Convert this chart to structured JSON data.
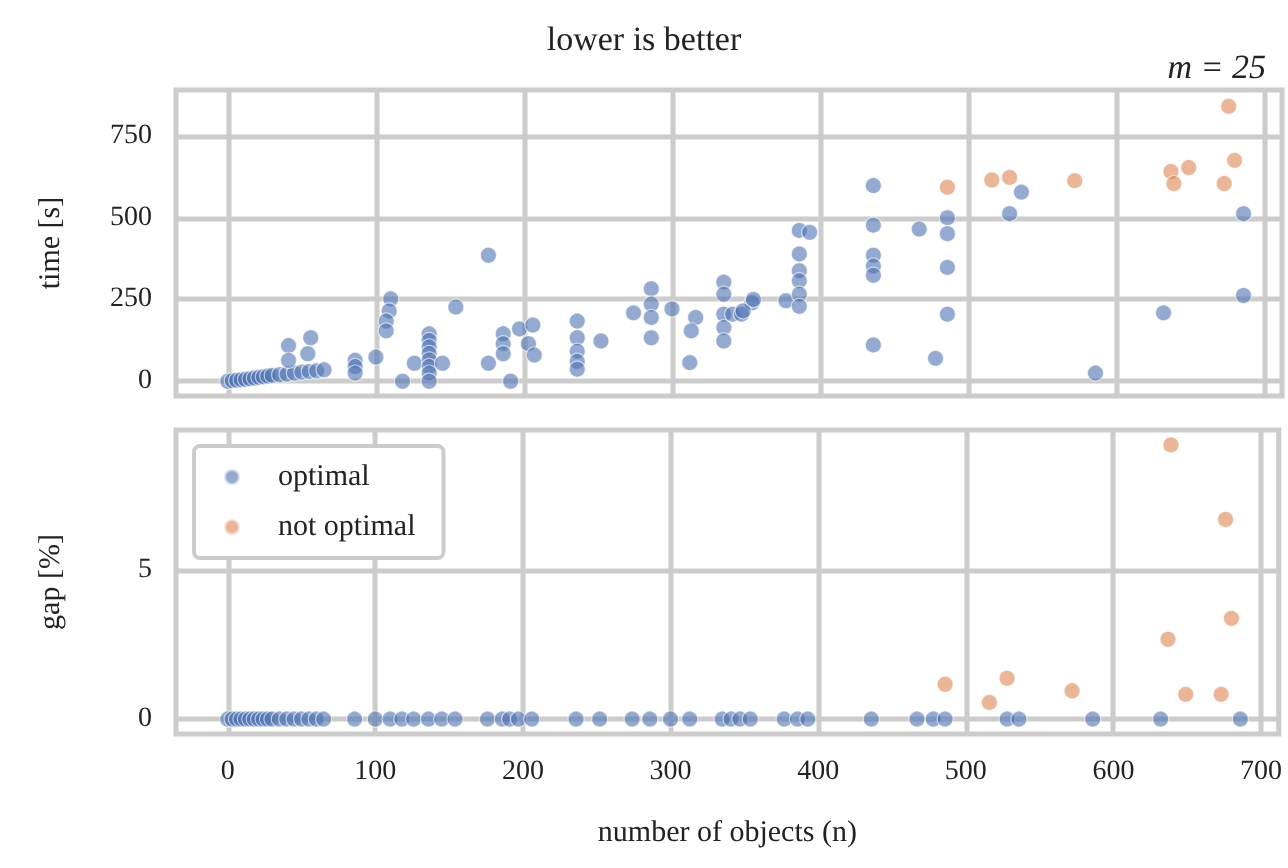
{
  "chart_data": [
    {
      "type": "scatter",
      "title": "lower is better",
      "annotations": [
        "m = 25"
      ],
      "ylabel": "time [s]",
      "xlim": [
        -35,
        712
      ],
      "xticks": [
        0,
        100,
        200,
        300,
        400,
        500,
        600,
        700
      ],
      "ylim": [
        -45,
        890
      ],
      "yticks": [
        0,
        250,
        500,
        750
      ],
      "tick_labels": "y",
      "grid": true,
      "marker": "circle",
      "legend": false,
      "series": [
        {
          "color": "#4c72b0",
          "x": [
            0,
            3,
            6,
            9,
            12,
            15,
            18,
            21,
            24,
            27,
            30,
            35,
            40,
            45,
            50,
            55,
            60,
            65,
            41,
            56,
            54,
            41,
            86,
            86,
            86,
            100,
            110,
            109,
            107,
            107,
            118,
            126,
            136,
            136,
            136,
            136,
            136,
            136,
            136,
            136,
            145,
            154,
            176,
            176,
            186,
            186,
            186,
            191,
            197,
            206,
            203,
            207,
            236,
            236,
            236,
            236,
            236,
            252,
            274,
            286,
            286,
            286,
            286,
            300,
            316,
            313,
            312,
            335,
            335,
            335,
            335,
            335,
            341,
            347,
            354,
            348,
            355,
            377,
            386,
            386,
            386,
            386,
            386,
            386,
            393,
            436,
            436,
            436,
            436,
            436,
            436,
            467,
            478,
            486,
            486,
            486,
            486,
            536,
            528,
            586,
            632,
            686,
            686
          ],
          "values": [
            0,
            2,
            3,
            5,
            6,
            8,
            10,
            12,
            14,
            16,
            18,
            20,
            22,
            25,
            28,
            30,
            32,
            35,
            109,
            133,
            84,
            64,
            64,
            45,
            25,
            74,
            252,
            215,
            184,
            154,
            0,
            55,
            145,
            125,
            105,
            85,
            65,
            45,
            25,
            0,
            55,
            227,
            385,
            55,
            145,
            115,
            84,
            0,
            160,
            172,
            115,
            80,
            184,
            133,
            92,
            61,
            37,
            123,
            209,
            283,
            236,
            195,
            133,
            221,
            195,
            154,
            57,
            303,
            266,
            205,
            164,
            123,
            205,
            205,
            240,
            215,
            250,
            246,
            461,
            389,
            338,
            307,
            266,
            229,
            455,
            598,
            477,
            385,
            352,
            324,
            111,
            465,
            70,
            500,
            451,
            348,
            205,
            578,
            512,
            25,
            209,
            512,
            262
          ]
        },
        {
          "color": "#dd8452",
          "x": [
            486,
            516,
            528,
            572,
            637,
            639,
            649,
            673,
            676,
            680
          ],
          "values": [
            593,
            615,
            623,
            613,
            641,
            604,
            653,
            604,
            840,
            675
          ]
        }
      ]
    },
    {
      "type": "scatter",
      "xlabel": "number of objects (n)",
      "ylabel": "gap [%]",
      "xlim": [
        -35,
        712
      ],
      "xticks": [
        0,
        100,
        200,
        300,
        400,
        500,
        600,
        700
      ],
      "ylim": [
        -0.5,
        9.7
      ],
      "yticks": [
        0,
        5
      ],
      "grid": true,
      "marker": "circle",
      "legend": "top left",
      "series": [
        {
          "name": "optimal",
          "color": "#4c72b0",
          "x": [
            0,
            3,
            6,
            9,
            12,
            15,
            18,
            21,
            24,
            27,
            30,
            35,
            40,
            45,
            50,
            55,
            60,
            65,
            86,
            100,
            110,
            118,
            126,
            136,
            145,
            154,
            176,
            186,
            191,
            197,
            206,
            236,
            252,
            274,
            286,
            300,
            313,
            335,
            341,
            347,
            354,
            377,
            386,
            393,
            436,
            467,
            478,
            486,
            528,
            536,
            586,
            632,
            686
          ],
          "values": [
            0,
            0,
            0,
            0,
            0,
            0,
            0,
            0,
            0,
            0,
            0,
            0,
            0,
            0,
            0,
            0,
            0,
            0,
            0,
            0,
            0,
            0,
            0,
            0,
            0,
            0,
            0,
            0,
            0,
            0,
            0,
            0,
            0,
            0,
            0,
            0,
            0,
            0,
            0,
            0,
            0,
            0,
            0,
            0,
            0,
            0,
            0,
            0,
            0,
            0,
            0,
            0,
            0
          ]
        },
        {
          "name": "not optimal",
          "color": "#dd8452",
          "x": [
            486,
            516,
            528,
            572,
            637,
            639,
            649,
            673,
            676,
            680
          ],
          "values": [
            1.17,
            0.56,
            1.37,
            0.95,
            2.68,
            9.2,
            0.83,
            0.83,
            6.7,
            3.38
          ]
        }
      ]
    }
  ]
}
